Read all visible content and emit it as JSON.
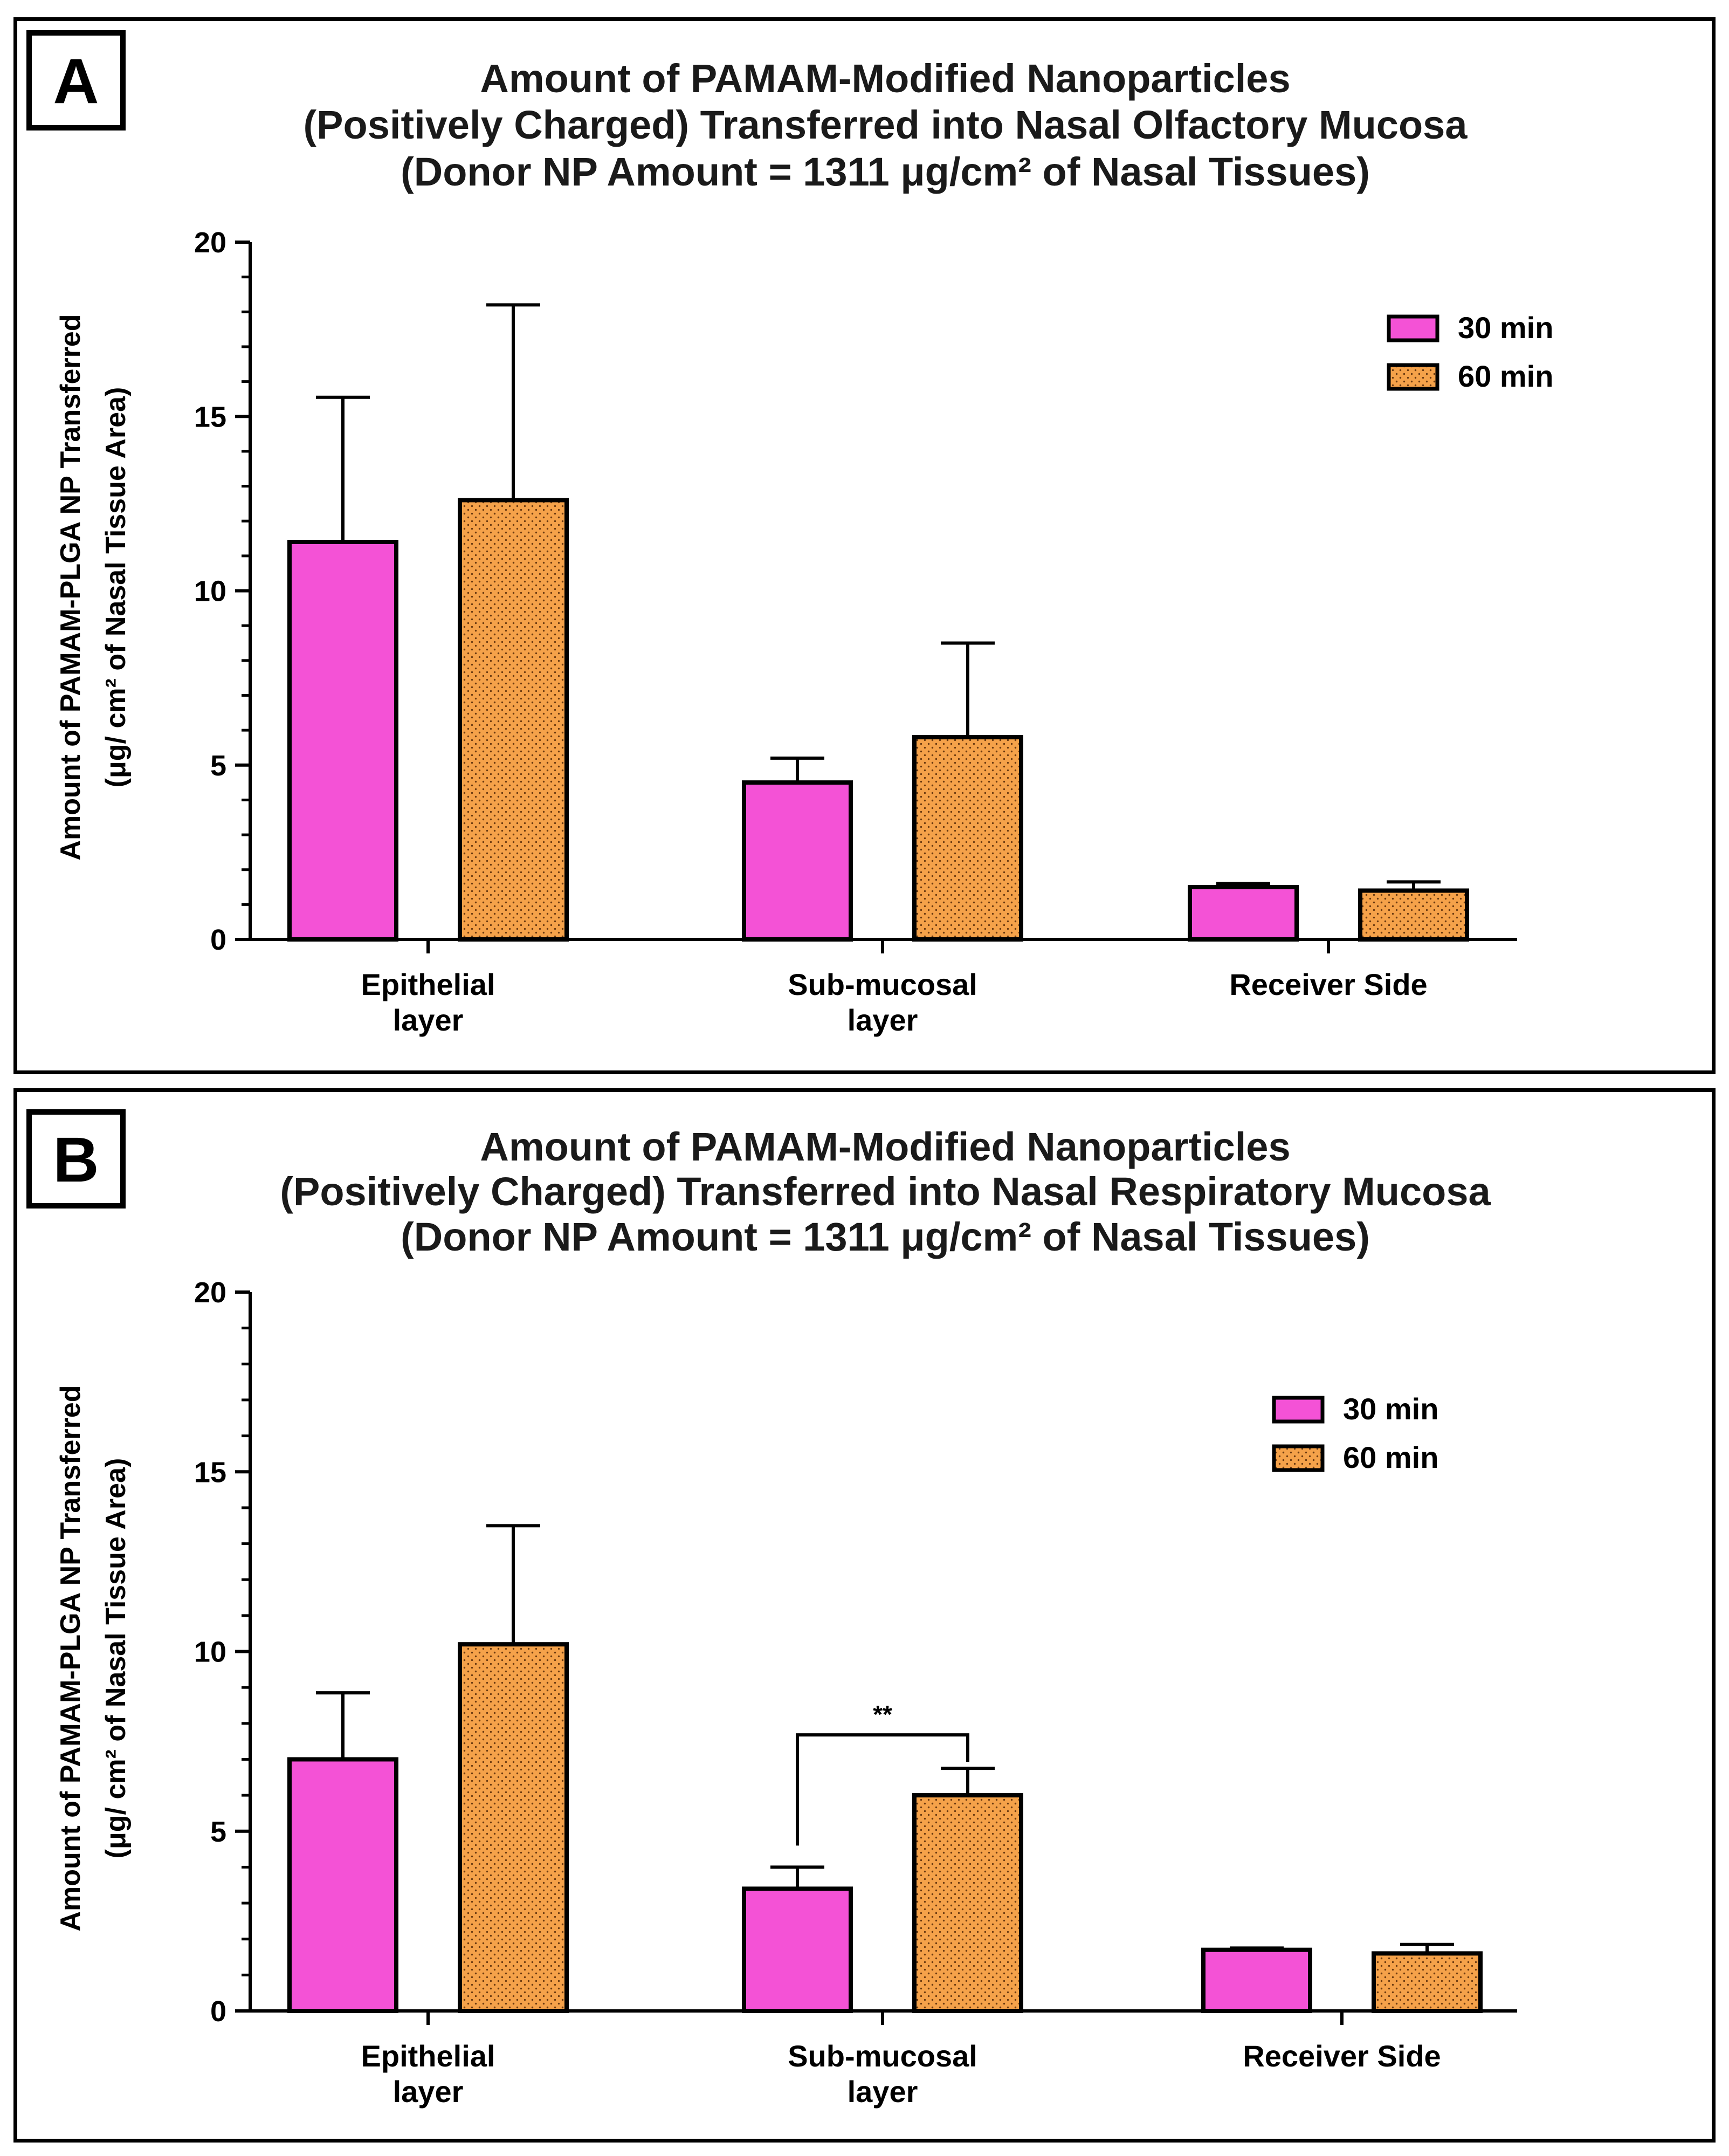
{
  "colors": {
    "min30": "#f452d6",
    "min60": "#f5a24a",
    "dot": "#6b3a10",
    "axis": "#000000"
  },
  "chart_data": [
    {
      "panel_letter": "A",
      "type": "bar",
      "title": [
        "Amount of PAMAM-Modified Nanoparticles",
        "(Positively Charged) Transferred into Nasal Olfactory Mucosa",
        "(Donor NP Amount = 1311 μg/cm² of Nasal Tissues)"
      ],
      "ylabel": [
        "Amount of PAMAM-PLGA NP Transferred",
        "(μg/ cm² of Nasal Tissue Area)"
      ],
      "ylim": [
        0,
        20
      ],
      "yticks": [
        0,
        5,
        10,
        15,
        20
      ],
      "categories": [
        [
          "Epithelial",
          "layer"
        ],
        [
          "Sub-mucosal",
          "layer"
        ],
        [
          "Receiver Side"
        ]
      ],
      "series": [
        {
          "name": "30 min",
          "values": [
            11.4,
            4.5,
            1.5
          ],
          "error": [
            4.15,
            0.7,
            0.1
          ]
        },
        {
          "name": "60 min",
          "values": [
            12.6,
            5.8,
            1.4
          ],
          "error": [
            5.6,
            2.7,
            0.25
          ]
        }
      ],
      "legend_position": "top-right",
      "significance": []
    },
    {
      "panel_letter": "B",
      "type": "bar",
      "title": [
        "Amount of PAMAM-Modified Nanoparticles",
        "(Positively Charged) Transferred into Nasal Respiratory Mucosa",
        "(Donor NP Amount = 1311 μg/cm² of Nasal Tissues)"
      ],
      "ylabel": [
        "Amount of PAMAM-PLGA NP Transferred",
        "(μg/ cm² of Nasal Tissue Area)"
      ],
      "ylim": [
        0,
        20
      ],
      "yticks": [
        0,
        5,
        10,
        15,
        20
      ],
      "categories": [
        [
          "Epithelial",
          "layer"
        ],
        [
          "Sub-mucosal",
          "layer"
        ],
        [
          "Receiver Side"
        ]
      ],
      "series": [
        {
          "name": "30 min",
          "values": [
            7.0,
            3.4,
            1.7
          ],
          "error": [
            1.85,
            0.6,
            0.05
          ]
        },
        {
          "name": "60 min",
          "values": [
            10.2,
            6.0,
            1.6
          ],
          "error": [
            3.3,
            0.75,
            0.25
          ]
        }
      ],
      "legend_position": "top-right",
      "significance": [
        {
          "category_index": 1,
          "label": "**"
        }
      ]
    }
  ]
}
